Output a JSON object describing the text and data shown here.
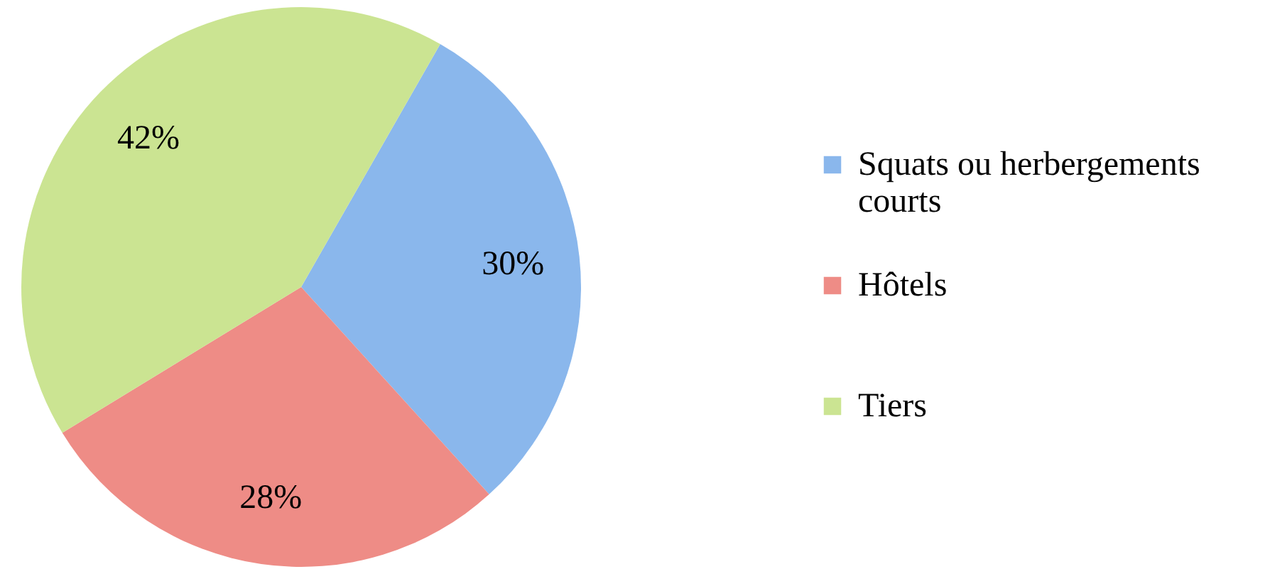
{
  "chart_data": {
    "type": "pie",
    "categories": [
      "Squats ou herbergements courts",
      "Hôtels",
      "Tiers"
    ],
    "values": [
      30,
      28,
      42
    ],
    "colors": [
      "#8ab7ec",
      "#ee8c86",
      "#cbe492"
    ],
    "value_labels": [
      "30%",
      "28%",
      "42%"
    ],
    "legend": "right"
  }
}
